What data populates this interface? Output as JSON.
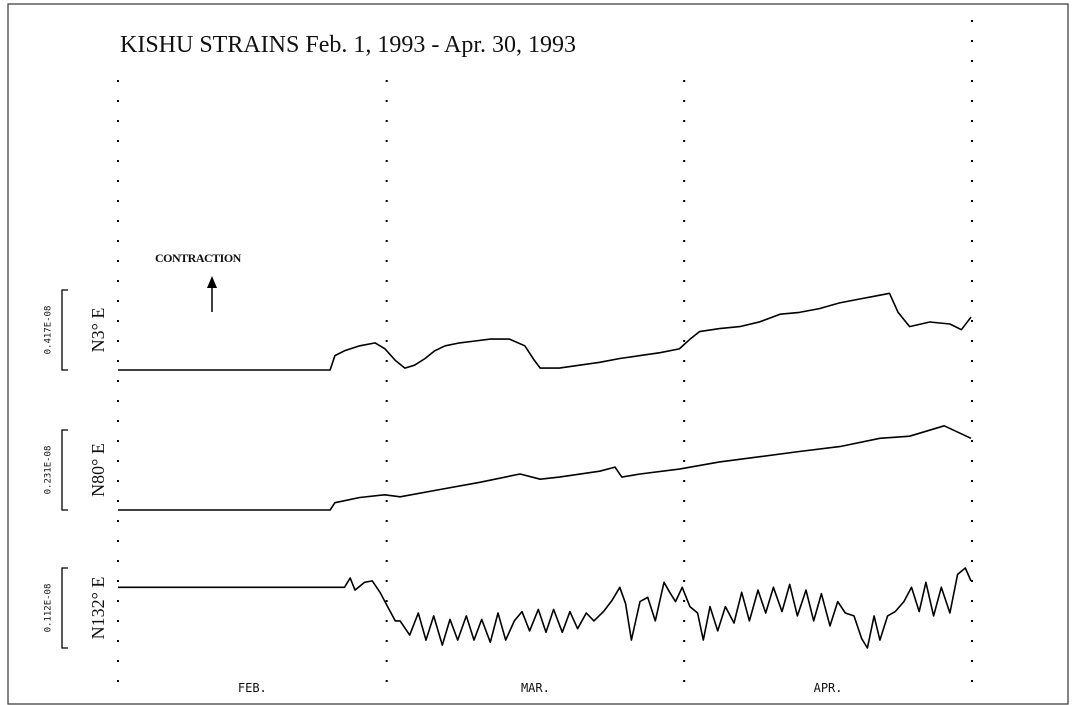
{
  "chart_data": {
    "type": "line",
    "title": "KISHU STRAINS  Feb. 1, 1993 - Apr. 30, 1993",
    "annotation": "CONTRACTION",
    "months": [
      "FEB.",
      "MAR.",
      "APR."
    ],
    "xlim": [
      0,
      89
    ],
    "xticks": [
      0,
      28,
      59,
      89
    ],
    "series": [
      {
        "name": "N3° E",
        "color": "#000000",
        "scale": {
          "value": 0.417,
          "label": "0.417E-08"
        },
        "x": [
          0,
          22.1,
          22.6,
          23.6,
          25.2,
          26.8,
          27.8,
          28.9,
          29.9,
          30.9,
          32.0,
          33.0,
          34.1,
          35.6,
          37.2,
          38.8,
          40.8,
          42.4,
          43.4,
          44.0,
          46.0,
          48.1,
          50.2,
          52.3,
          54.4,
          56.5,
          58.5,
          59.6,
          60.6,
          62.7,
          64.8,
          66.9,
          69.0,
          71.0,
          73.1,
          75.2,
          77.3,
          79.4,
          80.4,
          81.3,
          82.5,
          84.6,
          86.7,
          87.9,
          88.9
        ],
        "values": [
          0,
          0,
          0.075,
          0.1,
          0.126,
          0.141,
          0.111,
          0.05,
          0.01,
          0.025,
          0.06,
          0.1,
          0.126,
          0.141,
          0.151,
          0.161,
          0.161,
          0.126,
          0.05,
          0.01,
          0.01,
          0.025,
          0.04,
          0.06,
          0.075,
          0.09,
          0.11,
          0.16,
          0.2,
          0.216,
          0.226,
          0.251,
          0.291,
          0.3,
          0.32,
          0.35,
          0.37,
          0.39,
          0.4,
          0.3,
          0.226,
          0.25,
          0.24,
          0.21,
          0.276
        ]
      },
      {
        "name": "N80° E",
        "color": "#000000",
        "scale": {
          "value": 0.231,
          "label": "0.231E-08"
        },
        "x": [
          0,
          22.1,
          22.6,
          25.2,
          27.8,
          29.4,
          33.5,
          37.7,
          41.9,
          44.0,
          46.0,
          50.2,
          51.8,
          52.5,
          54.4,
          58.5,
          62.7,
          66.9,
          71.0,
          75.2,
          79.4,
          82.5,
          86.1,
          88.9
        ],
        "values": [
          0,
          0,
          0.021,
          0.036,
          0.044,
          0.038,
          0.059,
          0.08,
          0.104,
          0.089,
          0.095,
          0.112,
          0.124,
          0.095,
          0.104,
          0.118,
          0.139,
          0.154,
          0.169,
          0.183,
          0.207,
          0.213,
          0.243,
          0.207
        ]
      },
      {
        "name": "N132° E",
        "color": "#000000",
        "scale": {
          "value": 0.112,
          "label": "0.112E-08"
        },
        "x": [
          0,
          23.6,
          24.2,
          24.7,
          25.7,
          26.5,
          27.3,
          28.1,
          28.9,
          29.4,
          30.4,
          31.3,
          32.1,
          32.9,
          33.8,
          34.6,
          35.4,
          36.3,
          37.1,
          37.9,
          38.8,
          39.6,
          40.4,
          41.3,
          42.1,
          42.9,
          43.8,
          44.6,
          45.4,
          46.3,
          47.1,
          47.9,
          48.8,
          49.6,
          50.6,
          51.5,
          52.3,
          52.9,
          53.5,
          54.4,
          55.2,
          56.0,
          56.9,
          57.5,
          58.1,
          58.8,
          59.6,
          60.4,
          61.0,
          61.7,
          62.5,
          63.3,
          64.2,
          65.0,
          65.8,
          66.7,
          67.5,
          68.3,
          69.2,
          70.0,
          70.8,
          71.7,
          72.5,
          73.3,
          74.2,
          75.0,
          75.8,
          76.7,
          77.5,
          78.1,
          78.8,
          79.4,
          80.2,
          81.0,
          81.9,
          82.7,
          83.5,
          84.2,
          85.0,
          85.8,
          86.7,
          87.5,
          88.3,
          88.9
        ],
        "values": [
          0.085,
          0.085,
          0.098,
          0.081,
          0.092,
          0.094,
          0.078,
          0.058,
          0.038,
          0.038,
          0.018,
          0.049,
          0.011,
          0.045,
          0.004,
          0.04,
          0.011,
          0.045,
          0.011,
          0.04,
          0.008,
          0.049,
          0.011,
          0.038,
          0.051,
          0.024,
          0.054,
          0.022,
          0.054,
          0.022,
          0.051,
          0.027,
          0.049,
          0.038,
          0.051,
          0.067,
          0.085,
          0.062,
          0.011,
          0.065,
          0.071,
          0.038,
          0.092,
          0.078,
          0.065,
          0.085,
          0.058,
          0.049,
          0.011,
          0.058,
          0.024,
          0.058,
          0.035,
          0.078,
          0.038,
          0.081,
          0.049,
          0.085,
          0.051,
          0.089,
          0.045,
          0.081,
          0.038,
          0.076,
          0.031,
          0.065,
          0.049,
          0.045,
          0.013,
          0,
          0.045,
          0.011,
          0.045,
          0.051,
          0.065,
          0.085,
          0.051,
          0.092,
          0.045,
          0.085,
          0.049,
          0.103,
          0.112,
          0.094
        ]
      }
    ]
  }
}
